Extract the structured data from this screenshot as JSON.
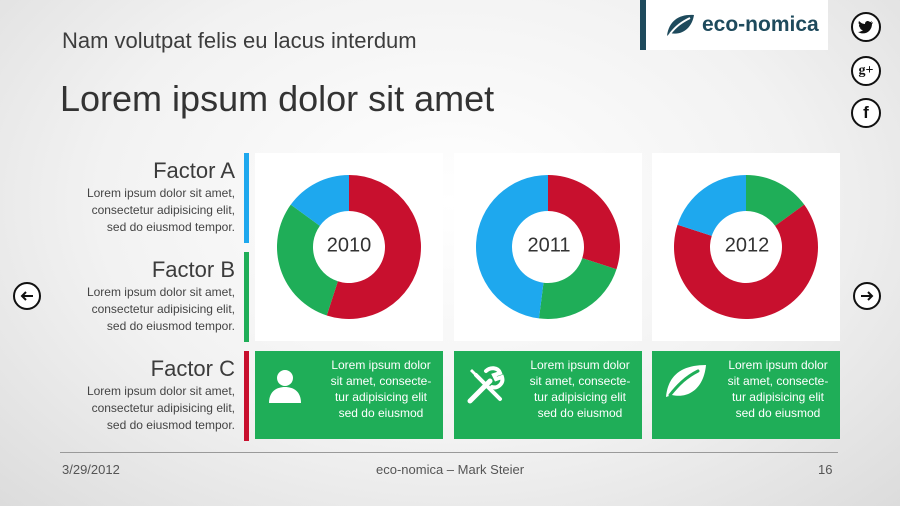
{
  "header": {
    "subtitle": "Nam volutpat felis eu lacus interdum",
    "title": "Lorem ipsum dolor sit amet"
  },
  "brand": {
    "name": "eco-nomica",
    "color": "#1e4a5c"
  },
  "social": [
    {
      "name": "twitter",
      "icon": "twitter-icon"
    },
    {
      "name": "google-plus",
      "icon": "gplus-icon",
      "glyph": "g+"
    },
    {
      "name": "facebook",
      "icon": "facebook-icon",
      "glyph": "f"
    }
  ],
  "factors": [
    {
      "name": "Factor A",
      "desc1": "Lorem ipsum dolor sit amet,",
      "desc2": "consectetur adipisicing elit,",
      "desc3": "sed do eiusmod tempor.",
      "color": "#1ea8ee"
    },
    {
      "name": "Factor B",
      "desc1": "Lorem ipsum dolor sit amet,",
      "desc2": "consectetur adipisicing elit,",
      "desc3": "sed do eiusmod tempor.",
      "color": "#1fae58"
    },
    {
      "name": "Factor C",
      "desc1": "Lorem ipsum dolor sit amet,",
      "desc2": "consectetur adipisicing elit,",
      "desc3": "sed do eiusmod tempor.",
      "color": "#c8102e"
    }
  ],
  "charts": [
    {
      "year": "2010",
      "slices": [
        {
          "factor": "Factor C",
          "percent": 55,
          "color": "#c8102e"
        },
        {
          "factor": "Factor B",
          "percent": 30,
          "color": "#1fae58"
        },
        {
          "factor": "Factor A",
          "percent": 15,
          "color": "#1ea8ee"
        }
      ]
    },
    {
      "year": "2011",
      "slices": [
        {
          "factor": "Factor C",
          "percent": 30,
          "color": "#c8102e"
        },
        {
          "factor": "Factor B",
          "percent": 22,
          "color": "#1fae58"
        },
        {
          "factor": "Factor A",
          "percent": 48,
          "color": "#1ea8ee"
        }
      ]
    },
    {
      "year": "2012",
      "slices": [
        {
          "factor": "Factor B",
          "percent": 15,
          "color": "#1fae58"
        },
        {
          "factor": "Factor C",
          "percent": 65,
          "color": "#c8102e"
        },
        {
          "factor": "Factor A",
          "percent": 20,
          "color": "#1ea8ee"
        }
      ]
    }
  ],
  "cards": [
    {
      "icon": "person-icon",
      "l1": "Lorem ipsum dolor",
      "l2": "sit amet, consecte-",
      "l3": "tur adipisicing elit",
      "l4": "sed do eiusmod"
    },
    {
      "icon": "tools-icon",
      "l1": "Lorem ipsum dolor",
      "l2": "sit amet, consecte-",
      "l3": "tur adipisicing elit",
      "l4": "sed do eiusmod"
    },
    {
      "icon": "leaf-icon",
      "l1": "Lorem ipsum dolor",
      "l2": "sit amet, consecte-",
      "l3": "tur adipisicing elit",
      "l4": "sed do eiusmod"
    }
  ],
  "footer": {
    "date": "3/29/2012",
    "center": "eco-nomica – Mark Steier",
    "page": "16"
  },
  "colors": {
    "green": "#1fae58",
    "red": "#c8102e",
    "blue": "#1ea8ee"
  }
}
